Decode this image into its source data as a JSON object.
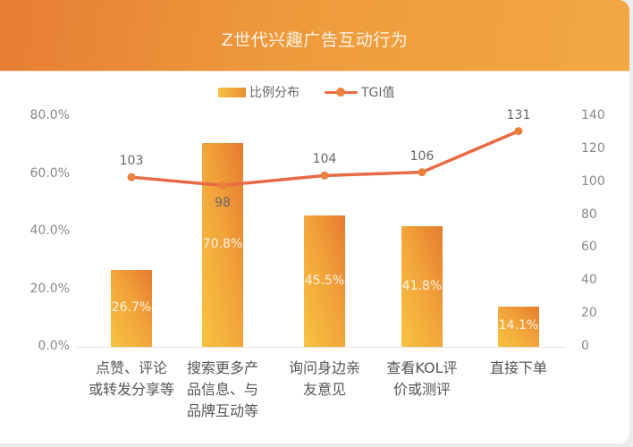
{
  "header": {
    "title": "Z世代兴趣广告互动行为"
  },
  "legend": {
    "bar_label": "比例分布",
    "line_label": "TGI值"
  },
  "axes": {
    "left_ticks": [
      "80.0%",
      "60.0%",
      "40.0%",
      "20.0%",
      "0.0%"
    ],
    "right_ticks": [
      "140",
      "120",
      "100",
      "80",
      "60",
      "40",
      "20",
      "0"
    ]
  },
  "categories": [
    {
      "lines": [
        "点赞、评论",
        "或转发分享等"
      ],
      "pct_label": "26.7%",
      "tgi_label": "103"
    },
    {
      "lines": [
        "搜索更多产",
        "品信息、与",
        "品牌互动等"
      ],
      "pct_label": "70.8%",
      "tgi_label": "98"
    },
    {
      "lines": [
        "询问身边亲",
        "友意见"
      ],
      "pct_label": "45.5%",
      "tgi_label": "104"
    },
    {
      "lines": [
        "查看KOL评",
        "价或测评"
      ],
      "pct_label": "41.8%",
      "tgi_label": "106"
    },
    {
      "lines": [
        "直接下单"
      ],
      "pct_label": "14.1%",
      "tgi_label": "131"
    }
  ],
  "colors": {
    "header_start": "#e67d33",
    "header_end": "#f2a842",
    "bar_top": "#e57b2f",
    "bar_bottom": "#f7c441",
    "line": "#ea6a44",
    "marker": "#e9823a"
  },
  "chart_data": {
    "type": "bar",
    "title": "Z世代兴趣广告互动行为",
    "categories": [
      "点赞、评论或转发分享等",
      "搜索更多产品信息、与品牌互动等",
      "询问身边亲友意见",
      "查看KOL评价或测评",
      "直接下单"
    ],
    "series": [
      {
        "name": "比例分布",
        "type": "bar",
        "axis": "left",
        "unit": "%",
        "values": [
          26.7,
          70.8,
          45.5,
          41.8,
          14.1
        ]
      },
      {
        "name": "TGI值",
        "type": "line",
        "axis": "right",
        "values": [
          103,
          98,
          104,
          106,
          131
        ]
      }
    ],
    "xlabel": "",
    "ylabel": "",
    "ylim": [
      0,
      80
    ],
    "y2lim": [
      0,
      140
    ],
    "yticks": [
      "0.0%",
      "20.0%",
      "40.0%",
      "60.0%",
      "80.0%"
    ],
    "y2ticks": [
      0,
      20,
      40,
      60,
      80,
      100,
      120,
      140
    ],
    "grid": false,
    "legend_position": "top"
  }
}
